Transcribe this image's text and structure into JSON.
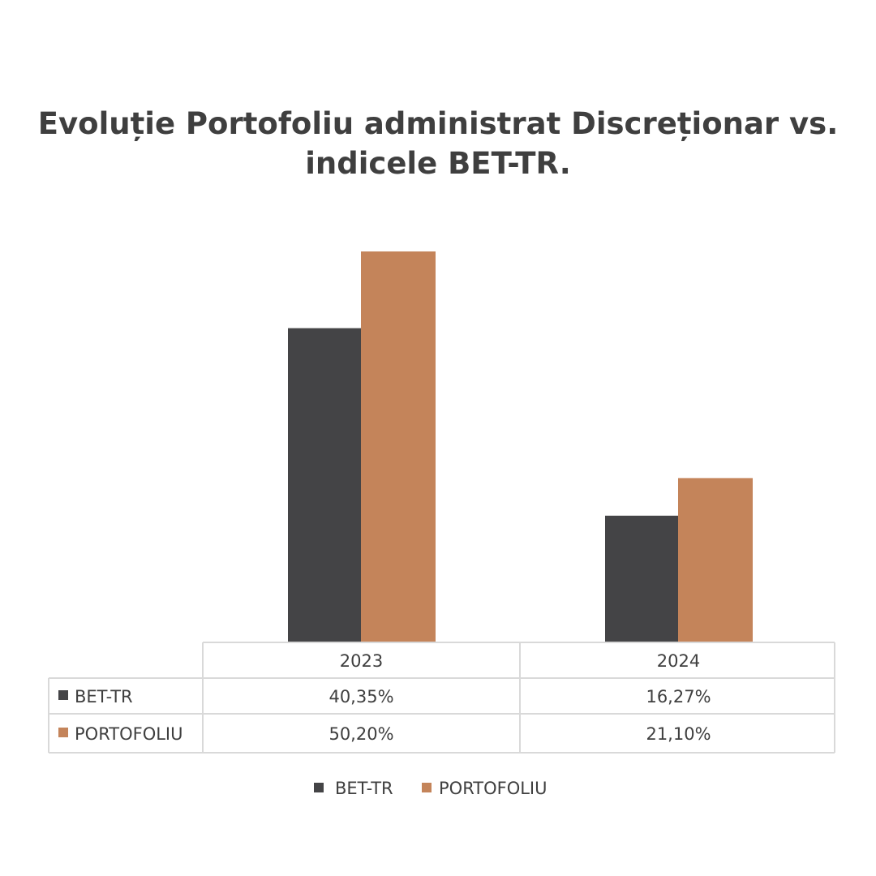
{
  "chart_data": {
    "type": "bar",
    "title": "Evoluție Portofoliu administrat Discreționar vs. indicele BET-TR.",
    "categories": [
      "2023",
      "2024"
    ],
    "series": [
      {
        "name": "BET-TR",
        "values": [
          40.35,
          16.27
        ],
        "labels": [
          "40,35%",
          "16,27%"
        ],
        "color": "#444446"
      },
      {
        "name": "PORTOFOLIU",
        "values": [
          50.2,
          21.1
        ],
        "labels": [
          "50,20%",
          "21,10%"
        ],
        "color": "#c4845a"
      }
    ],
    "ylim": [
      0,
      50.2
    ],
    "grid": false,
    "data_table": true,
    "legend_position": "bottom"
  }
}
